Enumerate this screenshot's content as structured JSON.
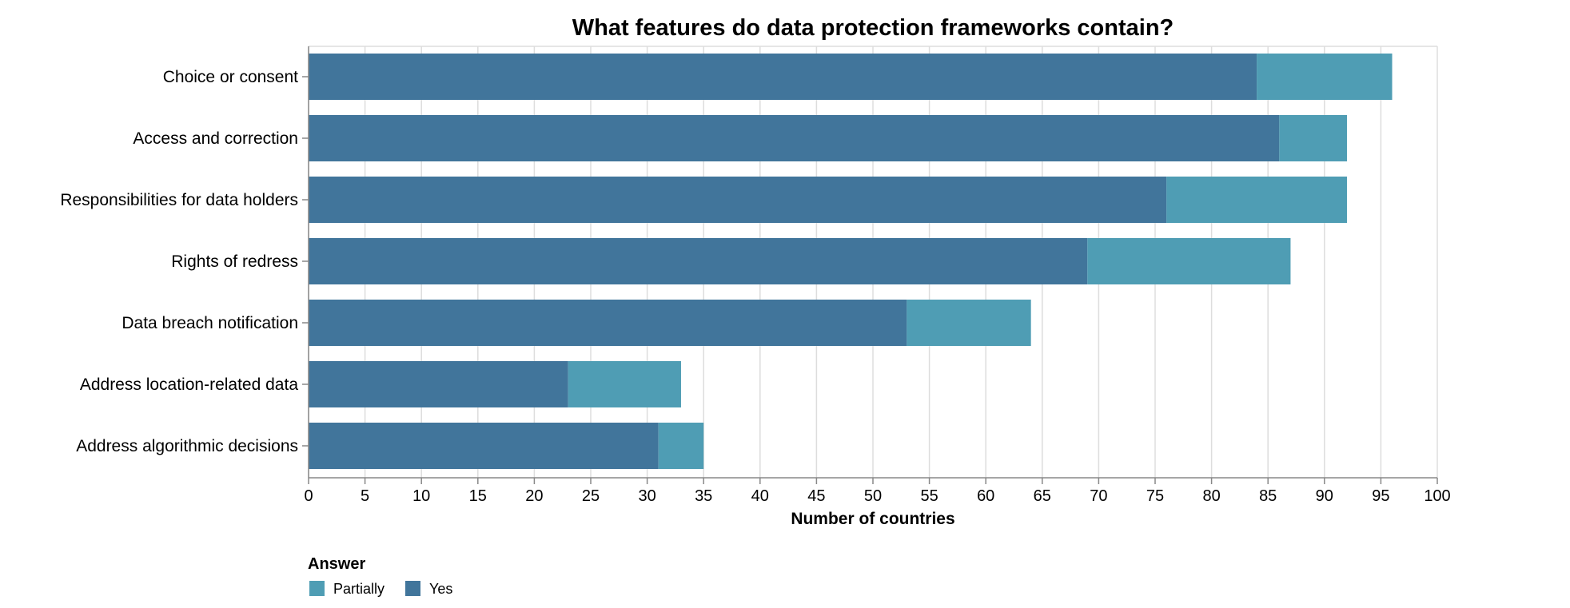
{
  "chart_data": {
    "type": "bar",
    "orientation": "horizontal",
    "stacked": true,
    "title": "What features do data protection frameworks contain?",
    "xlabel": "Number of countries",
    "ylabel": "",
    "xlim": [
      0,
      100
    ],
    "xticks": [
      "0",
      "5",
      "10",
      "15",
      "20",
      "25",
      "30",
      "35",
      "40",
      "45",
      "50",
      "55",
      "60",
      "65",
      "70",
      "75",
      "80",
      "85",
      "90",
      "95",
      "100"
    ],
    "grid": true,
    "categories": [
      "Choice or consent",
      "Access and correction",
      "Responsibilities for data holders",
      "Rights of redress",
      "Data breach notification",
      "Address location-related data",
      "Address algorithmic decisions"
    ],
    "series": [
      {
        "name": "Yes",
        "color": "#41759b",
        "values": [
          84,
          86,
          76,
          69,
          53,
          23,
          31
        ]
      },
      {
        "name": "Partially",
        "color": "#4f9db4",
        "values": [
          12,
          6,
          16,
          18,
          11,
          10,
          4
        ]
      }
    ],
    "legend": {
      "title": "Answer",
      "placement": "bottom-left",
      "entries": [
        {
          "label": "Partially",
          "color": "#4f9db4"
        },
        {
          "label": "Yes",
          "color": "#41759b"
        }
      ]
    }
  }
}
